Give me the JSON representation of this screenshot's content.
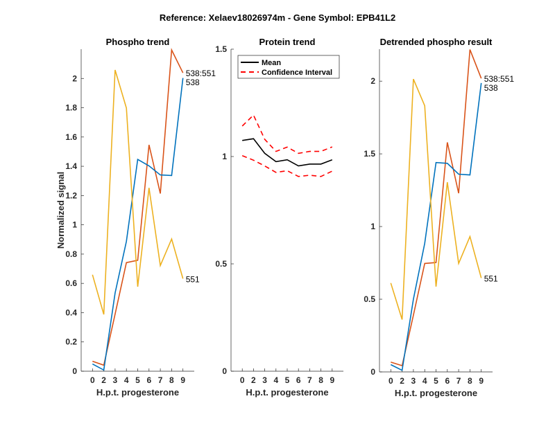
{
  "figure": {
    "suptitle": "Reference:  Xelaev18026974m - Gene Symbol:  EPB41L2"
  },
  "colors": {
    "series_538": "#0072BD",
    "series_538_551": "#D95319",
    "series_551": "#EDB120",
    "mean": "#000000",
    "confidence_interval": "#FF0000"
  },
  "chart_data": [
    {
      "type": "line",
      "title": "Phospho trend",
      "xlabel": "H.p.t. progesterone",
      "ylabel": "Normalized signal",
      "categories": [
        "0",
        "2",
        "3",
        "4",
        "5",
        "6",
        "7",
        "8",
        "9"
      ],
      "ylim": [
        0,
        2.2
      ],
      "yticks": [
        0,
        0.2,
        0.4,
        0.6,
        0.8,
        1,
        1.2,
        1.4,
        1.6,
        1.8,
        2
      ],
      "ytick_labels": [
        "0",
        "0.2",
        "0.4",
        "0.6",
        "0.8",
        "1",
        "1.2",
        "1.4",
        "1.6",
        "1.8",
        "2"
      ],
      "grid": false,
      "series": [
        {
          "name": "538:551",
          "color_key": "series_538_551",
          "end_label": "538:551",
          "values": [
            0.068,
            0.041,
            0.39,
            0.742,
            0.758,
            1.546,
            1.214,
            2.195,
            2.038
          ]
        },
        {
          "name": "538",
          "color_key": "series_538",
          "end_label": "538",
          "values": [
            0.049,
            0.008,
            0.534,
            0.887,
            1.447,
            1.403,
            1.341,
            1.337,
            2.003
          ]
        },
        {
          "name": "551",
          "color_key": "series_551",
          "end_label": "551",
          "values": [
            0.659,
            0.388,
            2.058,
            1.798,
            0.577,
            1.253,
            0.722,
            0.903,
            0.632
          ]
        }
      ]
    },
    {
      "type": "line",
      "title": "Protein trend",
      "xlabel": "H.p.t. progesterone",
      "ylabel": "",
      "categories": [
        "0",
        "2",
        "3",
        "4",
        "5",
        "6",
        "7",
        "8",
        "9"
      ],
      "ylim": [
        0,
        1.5
      ],
      "yticks": [
        0,
        0.5,
        1,
        1.5
      ],
      "ytick_labels": [
        "0",
        "0.5",
        "1",
        "1.5"
      ],
      "grid": false,
      "legend": {
        "placement": "top-left",
        "entries": [
          "Mean",
          "Confidence Interval"
        ]
      },
      "series": [
        {
          "name": "Mean",
          "color_key": "mean",
          "style": "solid",
          "values": [
            1.075,
            1.083,
            1.015,
            0.976,
            0.985,
            0.956,
            0.965,
            0.965,
            0.985
          ]
        },
        {
          "name": "Confidence Interval (upper)",
          "color_key": "confidence_interval",
          "style": "dashed",
          "values": [
            1.142,
            1.193,
            1.08,
            1.024,
            1.044,
            1.015,
            1.024,
            1.024,
            1.045
          ]
        },
        {
          "name": "Confidence Interval (lower)",
          "color_key": "confidence_interval",
          "style": "dashed",
          "values": [
            1.004,
            0.983,
            0.956,
            0.926,
            0.934,
            0.907,
            0.913,
            0.907,
            0.932
          ]
        }
      ]
    },
    {
      "type": "line",
      "title": "Detrended phospho result",
      "xlabel": "H.p.t. progesterone",
      "ylabel": "",
      "categories": [
        "0",
        "2",
        "3",
        "4",
        "5",
        "6",
        "7",
        "8",
        "9"
      ],
      "ylim": [
        0,
        2.22
      ],
      "yticks": [
        0,
        0.5,
        1,
        1.5,
        2
      ],
      "ytick_labels": [
        "0",
        "0.5",
        "1",
        "1.5",
        "2"
      ],
      "grid": false,
      "series": [
        {
          "name": "538:551",
          "color_key": "series_538_551",
          "end_label": "538:551",
          "values": [
            0.067,
            0.043,
            0.39,
            0.746,
            0.752,
            1.579,
            1.229,
            2.217,
            2.019
          ]
        },
        {
          "name": "538",
          "color_key": "series_538",
          "end_label": "538",
          "values": [
            0.05,
            0.011,
            0.5,
            0.884,
            1.44,
            1.435,
            1.36,
            1.355,
            1.987
          ]
        },
        {
          "name": "551",
          "color_key": "series_551",
          "end_label": "551",
          "values": [
            0.611,
            0.36,
            2.014,
            1.831,
            0.587,
            1.305,
            0.746,
            0.931,
            0.646
          ]
        }
      ]
    }
  ]
}
